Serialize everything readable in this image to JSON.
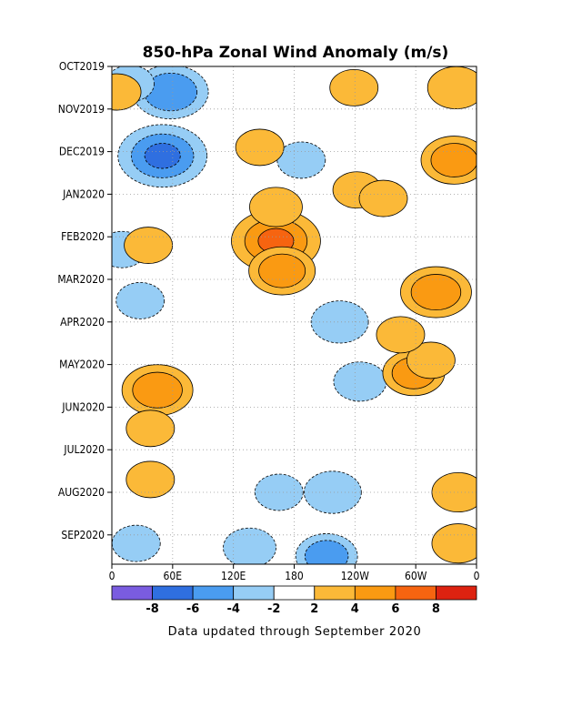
{
  "chart_data": {
    "type": "heatmap",
    "title": "850-hPa Zonal Wind Anomaly (m/s)",
    "xlabel": "",
    "ylabel": "",
    "x_tick_labels": [
      "0",
      "60E",
      "120E",
      "180",
      "120W",
      "60W",
      "0"
    ],
    "x_ticks_lon": [
      0,
      60,
      120,
      180,
      240,
      300,
      360
    ],
    "xlim": [
      0,
      360
    ],
    "y_tick_labels": [
      "OCT2019",
      "NOV2019",
      "DEC2019",
      "JAN2020",
      "FEB2020",
      "MAR2020",
      "APR2020",
      "MAY2020",
      "JUN2020",
      "JUL2020",
      "AUG2020",
      "SEP2020"
    ],
    "y_ticks_month": [
      0,
      1,
      2,
      3,
      4,
      5,
      6,
      7,
      8,
      9,
      10,
      11
    ],
    "ylim": [
      0,
      11.8
    ],
    "grid": true,
    "contour_levels": [
      -8,
      -6,
      -4,
      -2,
      2,
      4,
      6,
      8
    ],
    "colorbar": {
      "labels": [
        "-8",
        "-6",
        "-4",
        "-2",
        "2",
        "4",
        "6",
        "8"
      ],
      "colors": [
        "#7a5ce0",
        "#2f6fe0",
        "#4a9cf0",
        "#96cdf5",
        "#ffffff",
        "#fbb938",
        "#fa9a12",
        "#f66410",
        "#dd2210"
      ]
    },
    "anomaly_features": [
      {
        "lon": 58,
        "month": 0.6,
        "value": -5.5
      },
      {
        "lon": 50,
        "month": 2.1,
        "value": -7.0
      },
      {
        "lon": 18,
        "month": 0.4,
        "value": -2.5
      },
      {
        "lon": 28,
        "month": 5.5,
        "value": -2.5
      },
      {
        "lon": 10,
        "month": 4.3,
        "value": -2.5
      },
      {
        "lon": 225,
        "month": 6.0,
        "value": -3.5
      },
      {
        "lon": 245,
        "month": 7.4,
        "value": -3.0
      },
      {
        "lon": 218,
        "month": 10.0,
        "value": -3.5
      },
      {
        "lon": 165,
        "month": 10.0,
        "value": -2.5
      },
      {
        "lon": 136,
        "month": 11.3,
        "value": -3.0
      },
      {
        "lon": 212,
        "month": 11.5,
        "value": -4.0
      },
      {
        "lon": 24,
        "month": 11.2,
        "value": -2.5
      },
      {
        "lon": 187,
        "month": 2.2,
        "value": -2.5
      },
      {
        "lon": 162,
        "month": 4.1,
        "value": 7.0
      },
      {
        "lon": 168,
        "month": 4.8,
        "value": 4.5
      },
      {
        "lon": 162,
        "month": 3.3,
        "value": 3.0
      },
      {
        "lon": 146,
        "month": 1.9,
        "value": 2.5
      },
      {
        "lon": 45,
        "month": 7.6,
        "value": 5.0
      },
      {
        "lon": 320,
        "month": 5.3,
        "value": 5.0
      },
      {
        "lon": 298,
        "month": 7.2,
        "value": 4.0
      },
      {
        "lon": 340,
        "month": 0.5,
        "value": 3.5
      },
      {
        "lon": 338,
        "month": 2.2,
        "value": 4.5
      },
      {
        "lon": 342,
        "month": 10.0,
        "value": 3.0
      },
      {
        "lon": 342,
        "month": 11.2,
        "value": 3.0
      },
      {
        "lon": 239,
        "month": 0.5,
        "value": 2.5
      },
      {
        "lon": 242,
        "month": 2.9,
        "value": 2.5
      },
      {
        "lon": 268,
        "month": 3.1,
        "value": 2.5
      },
      {
        "lon": 315,
        "month": 6.9,
        "value": 2.5
      },
      {
        "lon": 285,
        "month": 6.3,
        "value": 2.5
      },
      {
        "lon": 38,
        "month": 8.5,
        "value": 2.5
      },
      {
        "lon": 38,
        "month": 9.7,
        "value": 2.5
      },
      {
        "lon": 36,
        "month": 4.2,
        "value": 2.5
      },
      {
        "lon": 5,
        "month": 0.6,
        "value": 2.5
      }
    ]
  },
  "footer": {
    "note": "Data updated through September 2020"
  }
}
